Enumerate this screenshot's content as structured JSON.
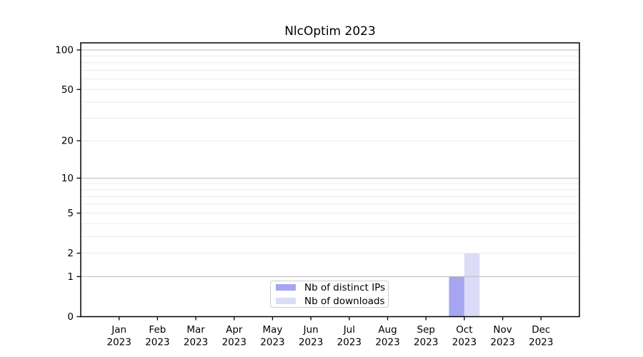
{
  "chart_data": {
    "type": "bar",
    "title": "NlcOptim 2023",
    "months": [
      "Jan",
      "Feb",
      "Mar",
      "Apr",
      "May",
      "Jun",
      "Jul",
      "Aug",
      "Sep",
      "Oct",
      "Nov",
      "Dec"
    ],
    "x_tick_year": "2023",
    "categories": [
      "Jan 2023",
      "Feb 2023",
      "Mar 2023",
      "Apr 2023",
      "May 2023",
      "Jun 2023",
      "Jul 2023",
      "Aug 2023",
      "Sep 2023",
      "Oct 2023",
      "Nov 2023",
      "Dec 2023"
    ],
    "series": [
      {
        "name": "Nb of distinct IPs",
        "color": "#a5a5f2",
        "values": [
          0,
          0,
          0,
          0,
          0,
          0,
          0,
          0,
          0,
          1,
          0,
          0
        ]
      },
      {
        "name": "Nb of downloads",
        "color": "#dcdcf8",
        "values": [
          0,
          0,
          0,
          0,
          0,
          0,
          0,
          0,
          0,
          2,
          0,
          0
        ]
      }
    ],
    "yscale": "log1p",
    "ylim": [
      0,
      113
    ],
    "yticks": [
      0,
      1,
      2,
      5,
      10,
      20,
      50,
      100
    ],
    "minor_gridlines": [
      2,
      3,
      4,
      5,
      6,
      7,
      8,
      9,
      20,
      30,
      40,
      50,
      60,
      70,
      80,
      90
    ],
    "major_gridlines": [
      1,
      10,
      100
    ],
    "grid": true,
    "legend_position": "lower center",
    "colors": {
      "frame": "#000000",
      "text": "#000000",
      "major_grid": "#bbbbbb",
      "minor_grid": "#ebebeb",
      "legend_border": "#cccccc",
      "background": "#ffffff"
    }
  },
  "legend": {
    "items": [
      {
        "label": "Nb of distinct IPs",
        "color": "#a5a5f2"
      },
      {
        "label": "Nb of downloads",
        "color": "#dcdcf8"
      }
    ]
  }
}
